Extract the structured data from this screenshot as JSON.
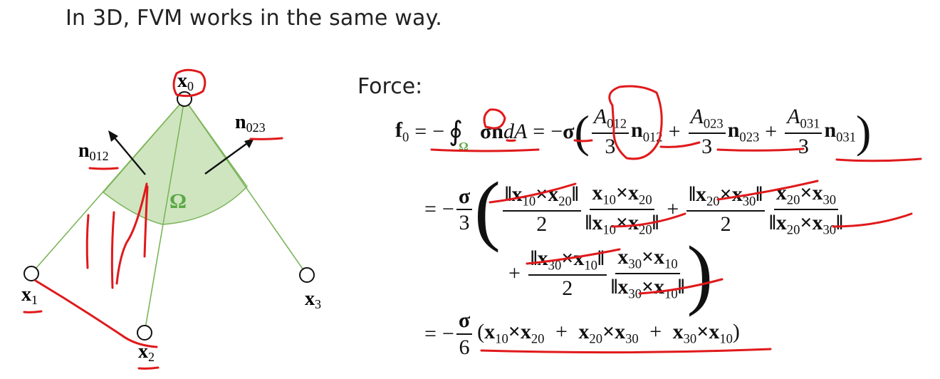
{
  "slide": {
    "title": "In 3D, FVM works in the same way.",
    "force_label": "Force:"
  },
  "diagram": {
    "vertices": [
      "x",
      "x",
      "x",
      "x"
    ],
    "vertex_subs": [
      "0",
      "1",
      "2",
      "3"
    ],
    "normals": [
      "n",
      "n"
    ],
    "normal_subs": [
      "012",
      "023"
    ],
    "region_label": "Ω",
    "colors": {
      "region_fill": "#cfe5c0",
      "edge": "#7db55a",
      "ink": "#e0191b",
      "omega": "#5aa845"
    }
  },
  "equations": {
    "f": "f",
    "f_sub": "0",
    "eq": "=",
    "minus": "−",
    "plus": "+",
    "times": "×",
    "oint": "∮",
    "omega_sub": "Ω",
    "sigma": "σ",
    "n": "n",
    "dA": "dA",
    "A": "A",
    "A012_sub": "012",
    "A023_sub": "023",
    "A031_sub": "031",
    "three": "3",
    "two": "2",
    "six": "6",
    "n012_sub": "012",
    "n023_sub": "023",
    "n031_sub": "031",
    "norm": "‖",
    "x": "x",
    "s10": "10",
    "s20": "20",
    "s30": "30"
  }
}
